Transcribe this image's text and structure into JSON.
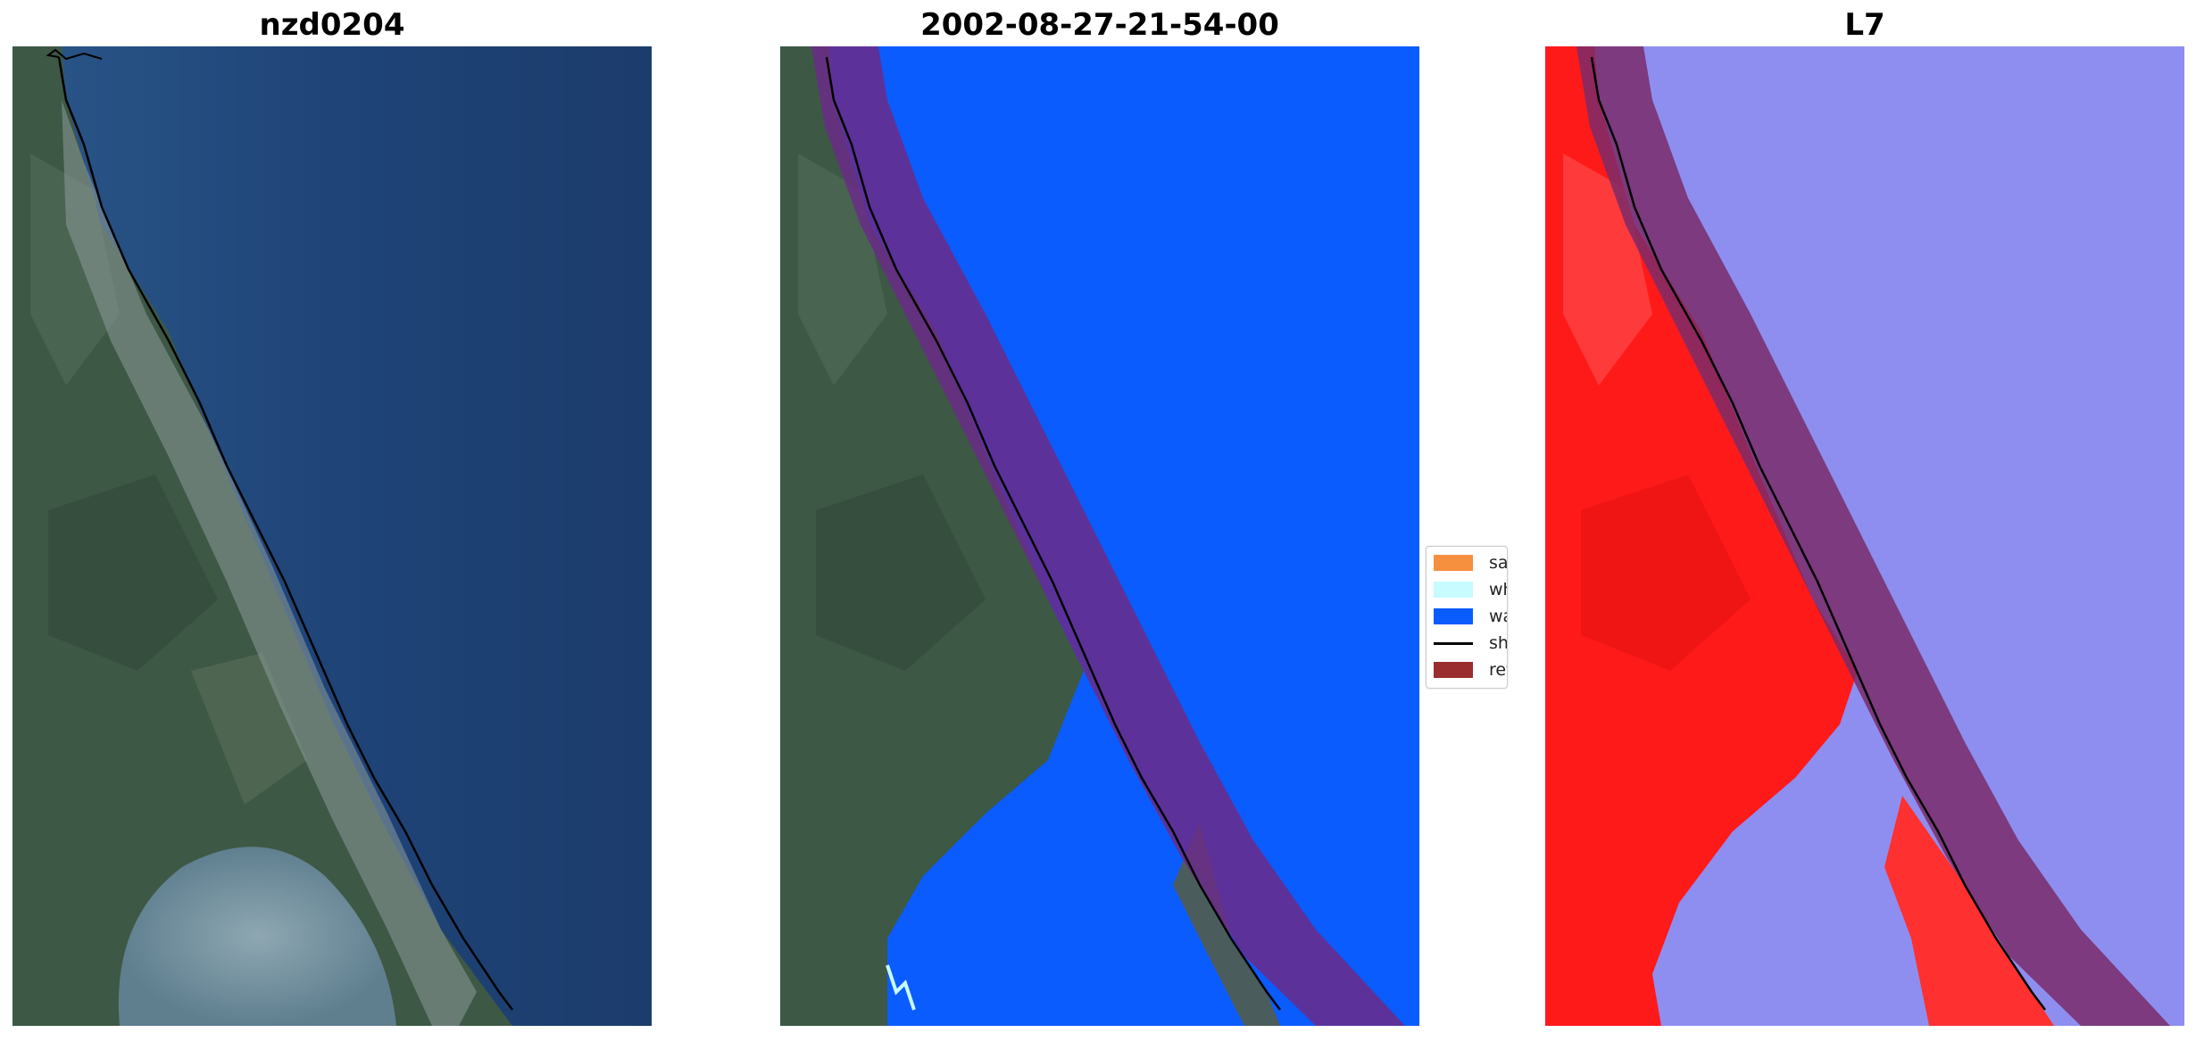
{
  "panels": [
    {
      "title": "nzd0204",
      "view": "rgb-image"
    },
    {
      "title": "2002-08-27-21-54-00",
      "view": "classified-image"
    },
    {
      "title": "L7",
      "view": "water-index-image"
    }
  ],
  "legend": {
    "items": [
      {
        "label": "sand",
        "color": "#f68f3e",
        "kind": "patch"
      },
      {
        "label": "whitewater",
        "color": "#c8fbff",
        "kind": "patch"
      },
      {
        "label": "water",
        "color": "#0a5cff",
        "kind": "patch"
      },
      {
        "label": "shoreline",
        "color": "#000000",
        "kind": "line"
      },
      {
        "label": "reference shoreline buffer",
        "color": "#9a2d2d",
        "kind": "patch"
      }
    ]
  },
  "colors": {
    "ocean": "#1c3f72",
    "land": "#3d5845",
    "water_class": "#0a5cff",
    "buffer": "#7a2c6a",
    "index_land": "#ff1a1a",
    "index_water": "#8e8ef0"
  }
}
